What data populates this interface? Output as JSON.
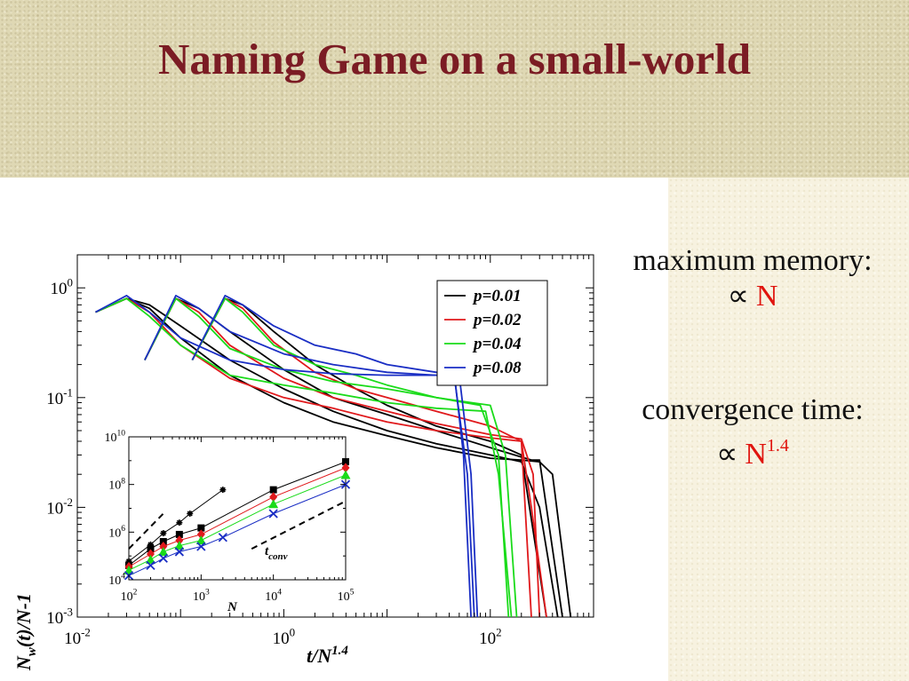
{
  "slide": {
    "title": "Naming Game on a small-world"
  },
  "notes": [
    {
      "label": "maximum memory:",
      "prefix": "∝",
      "value": "N",
      "exponent": ""
    },
    {
      "label": "convergence time:",
      "prefix": "∝",
      "value": "N",
      "exponent": "1.4"
    }
  ],
  "colors": {
    "title": "#7b1c24",
    "highlight": "#e0140e",
    "p001": "#000000",
    "p002": "#e0191c",
    "p004": "#1adb1a",
    "p008": "#1a2ec4"
  },
  "chart_data": [
    {
      "type": "line",
      "xscale": "log",
      "yscale": "log",
      "xlim": [
        0.01,
        1000
      ],
      "ylim": [
        0.001,
        2
      ],
      "xticks": [
        "10^-2",
        "10^0",
        "10^2"
      ],
      "yticks": [
        "10^0",
        "10^-1",
        "10^-2",
        "10^-3"
      ],
      "xlabel": "t/N^1.4",
      "ylabel": "N_w(t)/N-1",
      "legend": "top-right",
      "series": [
        {
          "name": "p=0.01",
          "color": "#000000",
          "curves": [
            {
              "x": [
                0.015,
                0.03,
                0.05,
                0.1,
                0.3,
                1,
                3,
                10,
                30,
                100,
                200,
                300,
                400,
                600
              ],
              "y": [
                0.6,
                0.8,
                0.65,
                0.35,
                0.16,
                0.09,
                0.06,
                0.045,
                0.035,
                0.028,
                0.027,
                0.026,
                0.02,
                0.001
              ]
            },
            {
              "x": [
                0.015,
                0.03,
                0.05,
                0.1,
                0.3,
                1,
                3,
                10,
                30,
                100,
                200,
                300,
                450
              ],
              "y": [
                0.6,
                0.8,
                0.7,
                0.45,
                0.22,
                0.12,
                0.075,
                0.05,
                0.038,
                0.03,
                0.026,
                0.01,
                0.001
              ]
            },
            {
              "x": [
                0.045,
                0.09,
                0.15,
                0.3,
                1,
                3,
                10,
                30,
                100,
                250,
                300,
                500
              ],
              "y": [
                0.22,
                0.8,
                0.65,
                0.4,
                0.18,
                0.1,
                0.07,
                0.05,
                0.035,
                0.027,
                0.027,
                0.001
              ]
            },
            {
              "x": [
                0.13,
                0.27,
                0.4,
                0.8,
                2,
                5,
                10,
                30,
                100,
                200,
                350
              ],
              "y": [
                0.22,
                0.8,
                0.7,
                0.4,
                0.2,
                0.12,
                0.085,
                0.055,
                0.04,
                0.03,
                0.001
              ]
            }
          ]
        },
        {
          "name": "p=0.02",
          "color": "#e0191c",
          "curves": [
            {
              "x": [
                0.015,
                0.03,
                0.05,
                0.1,
                0.3,
                1,
                3,
                10,
                30,
                100,
                200,
                250,
                350
              ],
              "y": [
                0.6,
                0.8,
                0.6,
                0.3,
                0.15,
                0.1,
                0.08,
                0.06,
                0.05,
                0.043,
                0.04,
                0.01,
                0.001
              ]
            },
            {
              "x": [
                0.045,
                0.09,
                0.15,
                0.3,
                1,
                3,
                10,
                30,
                100,
                200,
                260,
                300
              ],
              "y": [
                0.22,
                0.8,
                0.6,
                0.3,
                0.15,
                0.1,
                0.075,
                0.058,
                0.046,
                0.042,
                0.02,
                0.001
              ]
            },
            {
              "x": [
                0.13,
                0.27,
                0.4,
                0.8,
                2,
                5,
                10,
                30,
                100,
                200,
                250
              ],
              "y": [
                0.22,
                0.8,
                0.65,
                0.32,
                0.17,
                0.12,
                0.1,
                0.075,
                0.055,
                0.04,
                0.001
              ]
            }
          ]
        },
        {
          "name": "p=0.04",
          "color": "#1adb1a",
          "curves": [
            {
              "x": [
                0.015,
                0.03,
                0.05,
                0.1,
                0.3,
                1,
                3,
                10,
                30,
                90,
                120,
                160
              ],
              "y": [
                0.6,
                0.8,
                0.55,
                0.3,
                0.16,
                0.13,
                0.11,
                0.09,
                0.08,
                0.075,
                0.02,
                0.001
              ]
            },
            {
              "x": [
                0.045,
                0.09,
                0.15,
                0.3,
                1,
                3,
                10,
                30,
                100,
                140,
                180
              ],
              "y": [
                0.22,
                0.8,
                0.55,
                0.28,
                0.18,
                0.14,
                0.12,
                0.1,
                0.085,
                0.03,
                0.001
              ]
            },
            {
              "x": [
                0.13,
                0.27,
                0.4,
                0.8,
                2,
                5,
                10,
                30,
                80,
                120,
                150
              ],
              "y": [
                0.22,
                0.8,
                0.6,
                0.3,
                0.2,
                0.16,
                0.13,
                0.1,
                0.085,
                0.03,
                0.001
              ]
            }
          ]
        },
        {
          "name": "p=0.08",
          "color": "#1a2ec4",
          "curves": [
            {
              "x": [
                0.015,
                0.03,
                0.05,
                0.1,
                0.3,
                1,
                3,
                10,
                30,
                45,
                60,
                70
              ],
              "y": [
                0.6,
                0.85,
                0.6,
                0.35,
                0.22,
                0.18,
                0.165,
                0.16,
                0.16,
                0.15,
                0.02,
                0.001
              ]
            },
            {
              "x": [
                0.045,
                0.09,
                0.15,
                0.3,
                1,
                3,
                10,
                30,
                50,
                65,
                75
              ],
              "y": [
                0.22,
                0.85,
                0.65,
                0.4,
                0.25,
                0.2,
                0.17,
                0.16,
                0.16,
                0.02,
                0.001
              ]
            },
            {
              "x": [
                0.13,
                0.27,
                0.4,
                0.8,
                2,
                5,
                10,
                30,
                45,
                55,
                65
              ],
              "y": [
                0.22,
                0.85,
                0.7,
                0.45,
                0.3,
                0.25,
                0.2,
                0.17,
                0.16,
                0.03,
                0.001
              ]
            }
          ]
        }
      ]
    },
    {
      "type": "scatter",
      "xscale": "log",
      "yscale": "log",
      "xlim": [
        100,
        100000
      ],
      "ylim": [
        10000,
        10000000000
      ],
      "xticks": [
        "10^2",
        "10^3",
        "10^4",
        "10^5"
      ],
      "yticks": [
        "10^10",
        "10^8",
        "10^6",
        "10^4"
      ],
      "xlabel": "N",
      "annotation": "t_conv",
      "series": [
        {
          "name": "p=0.01",
          "color": "#000000",
          "marker": "star",
          "points": [
            [
              100,
              60000
            ],
            [
              200,
              300000
            ],
            [
              300,
              900000
            ],
            [
              500,
              2500000
            ],
            [
              700,
              6000000
            ],
            [
              2000,
              60000000
            ]
          ]
        },
        {
          "name": "p=0.01",
          "color": "#000000",
          "marker": "square",
          "points": [
            [
              100,
              40000
            ],
            [
              200,
              200000
            ],
            [
              300,
              400000
            ],
            [
              500,
              800000
            ],
            [
              1000,
              1500000
            ],
            [
              10000,
              60000000
            ],
            [
              100000,
              900000000
            ]
          ]
        },
        {
          "name": "p=0.02",
          "color": "#e0191c",
          "marker": "diamond",
          "points": [
            [
              100,
              35000
            ],
            [
              200,
              120000
            ],
            [
              300,
              250000
            ],
            [
              500,
              450000
            ],
            [
              1000,
              800000
            ],
            [
              10000,
              30000000
            ],
            [
              100000,
              500000000
            ]
          ]
        },
        {
          "name": "p=0.04",
          "color": "#1adb1a",
          "marker": "triangle",
          "points": [
            [
              100,
              25000
            ],
            [
              200,
              70000
            ],
            [
              300,
              150000
            ],
            [
              500,
              270000
            ],
            [
              1000,
              450000
            ],
            [
              10000,
              15000000
            ],
            [
              100000,
              250000000
            ]
          ]
        },
        {
          "name": "p=0.08",
          "color": "#1a2ec4",
          "marker": "cross",
          "points": [
            [
              100,
              15000
            ],
            [
              200,
              40000
            ],
            [
              300,
              80000
            ],
            [
              500,
              150000
            ],
            [
              1000,
              250000
            ],
            [
              2000,
              600000
            ],
            [
              10000,
              6000000
            ],
            [
              100000,
              100000000
            ]
          ]
        }
      ],
      "guides": [
        {
          "style": "dashed",
          "points": [
            [
              100,
              200000
            ],
            [
              300,
              6000000
            ]
          ]
        },
        {
          "style": "dashed",
          "points": [
            [
              5000,
              200000
            ],
            [
              100000,
              20000000
            ]
          ]
        }
      ]
    }
  ]
}
